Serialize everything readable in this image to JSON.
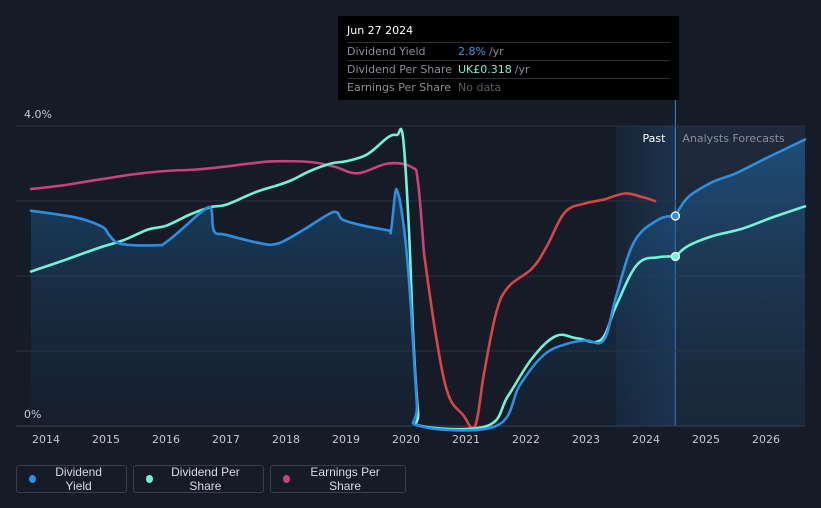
{
  "tooltip": {
    "date": "Jun 27 2024",
    "rows": [
      {
        "label": "Dividend Yield",
        "value": "2.8%",
        "unit": "/yr"
      },
      {
        "label": "Dividend Per Share",
        "value": "UK£0.318",
        "unit": "/yr"
      },
      {
        "label": "Earnings Per Share",
        "value": "No data",
        "unit": ""
      }
    ]
  },
  "legend": [
    {
      "label": "Dividend Yield",
      "color": "#2d8ee2"
    },
    {
      "label": "Dividend Per Share",
      "color": "#72f2d7"
    },
    {
      "label": "Earnings Per Share",
      "color": "#c8427f"
    }
  ],
  "chart_data": {
    "type": "line",
    "title": "",
    "xlabel": "",
    "ylabel": "Dividend Yield",
    "ylim": [
      0,
      4.0
    ],
    "xlim": [
      2013.5,
      2026.65
    ],
    "y_tick_labels": [
      {
        "value": 4.0,
        "label": "4.0%"
      },
      {
        "value": 0,
        "label": "0%"
      }
    ],
    "x_ticks": [
      "2014",
      "2015",
      "2016",
      "2017",
      "2018",
      "2019",
      "2020",
      "2021",
      "2022",
      "2023",
      "2024",
      "2025",
      "2026"
    ],
    "grid": true,
    "regions": {
      "past_label": "Past",
      "forecast_label": "Analysts Forecasts",
      "past_shade_start": 2023.5,
      "forecast_start": 2024.49
    },
    "colors": {
      "yield": "#2d8ee2",
      "dps": "#72f2d7",
      "eps_past": "#c8427f",
      "eps_recovery": "#d94545"
    },
    "series": [
      {
        "name": "Dividend Yield",
        "unit": "%",
        "points": [
          [
            2013.75,
            2.87
          ],
          [
            2014.2,
            2.82
          ],
          [
            2014.6,
            2.76
          ],
          [
            2014.95,
            2.65
          ],
          [
            2015.05,
            2.55
          ],
          [
            2015.25,
            2.43
          ],
          [
            2015.85,
            2.41
          ],
          [
            2016.0,
            2.45
          ],
          [
            2016.3,
            2.65
          ],
          [
            2016.6,
            2.86
          ],
          [
            2016.75,
            2.9
          ],
          [
            2016.8,
            2.6
          ],
          [
            2017.0,
            2.55
          ],
          [
            2017.5,
            2.45
          ],
          [
            2017.85,
            2.43
          ],
          [
            2018.3,
            2.62
          ],
          [
            2018.7,
            2.82
          ],
          [
            2018.85,
            2.85
          ],
          [
            2018.95,
            2.75
          ],
          [
            2019.3,
            2.67
          ],
          [
            2019.7,
            2.61
          ],
          [
            2019.75,
            2.61
          ],
          [
            2019.82,
            3.1
          ],
          [
            2019.86,
            3.12
          ],
          [
            2019.92,
            2.9
          ],
          [
            2020.0,
            2.4
          ],
          [
            2020.08,
            1.6
          ],
          [
            2020.18,
            0.3
          ],
          [
            2020.23,
            0.0
          ],
          [
            2021.5,
            0.0
          ],
          [
            2021.9,
            0.55
          ],
          [
            2022.3,
            0.95
          ],
          [
            2022.7,
            1.1
          ],
          [
            2023.0,
            1.14
          ],
          [
            2023.3,
            1.15
          ],
          [
            2023.5,
            1.72
          ],
          [
            2023.8,
            2.45
          ],
          [
            2024.2,
            2.75
          ],
          [
            2024.49,
            2.8
          ]
        ]
      },
      {
        "name": "Dividend Yield (forecast)",
        "unit": "%",
        "points": [
          [
            2024.49,
            2.8
          ],
          [
            2024.7,
            3.05
          ],
          [
            2025.1,
            3.25
          ],
          [
            2025.5,
            3.37
          ],
          [
            2026.0,
            3.57
          ],
          [
            2026.65,
            3.82
          ]
        ]
      },
      {
        "name": "Dividend Per Share",
        "unit": "GBP",
        "points": [
          [
            2013.75,
            2.06
          ],
          [
            2014.3,
            2.21
          ],
          [
            2014.9,
            2.38
          ],
          [
            2015.3,
            2.48
          ],
          [
            2015.7,
            2.62
          ],
          [
            2016.0,
            2.67
          ],
          [
            2016.4,
            2.82
          ],
          [
            2016.75,
            2.92
          ],
          [
            2017.0,
            2.95
          ],
          [
            2017.5,
            3.12
          ],
          [
            2017.9,
            3.22
          ],
          [
            2018.1,
            3.28
          ],
          [
            2018.4,
            3.4
          ],
          [
            2018.75,
            3.5
          ],
          [
            2019.0,
            3.53
          ],
          [
            2019.35,
            3.62
          ],
          [
            2019.7,
            3.85
          ],
          [
            2019.85,
            3.88
          ],
          [
            2019.95,
            3.85
          ],
          [
            2020.05,
            2.6
          ],
          [
            2020.12,
            1.2
          ],
          [
            2020.2,
            0.2
          ],
          [
            2020.26,
            0.0
          ],
          [
            2021.35,
            0.0
          ],
          [
            2021.7,
            0.4
          ],
          [
            2022.1,
            0.9
          ],
          [
            2022.5,
            1.2
          ],
          [
            2022.85,
            1.17
          ],
          [
            2023.25,
            1.15
          ],
          [
            2023.5,
            1.6
          ],
          [
            2023.85,
            2.15
          ],
          [
            2024.2,
            2.25
          ],
          [
            2024.49,
            2.26
          ]
        ]
      },
      {
        "name": "Dividend Per Share (forecast)",
        "unit": "GBP",
        "points": [
          [
            2024.49,
            2.26
          ],
          [
            2024.7,
            2.4
          ],
          [
            2025.1,
            2.53
          ],
          [
            2025.6,
            2.63
          ],
          [
            2026.1,
            2.78
          ],
          [
            2026.65,
            2.93
          ]
        ]
      },
      {
        "name": "Earnings Per Share",
        "unit": "GBP",
        "points": [
          [
            2013.75,
            3.16
          ],
          [
            2014.2,
            3.2
          ],
          [
            2014.6,
            3.25
          ],
          [
            2015.0,
            3.3
          ],
          [
            2015.5,
            3.36
          ],
          [
            2016.0,
            3.4
          ],
          [
            2016.5,
            3.42
          ],
          [
            2017.0,
            3.46
          ],
          [
            2017.4,
            3.5
          ],
          [
            2017.8,
            3.53
          ],
          [
            2018.4,
            3.52
          ],
          [
            2018.8,
            3.46
          ],
          [
            2019.2,
            3.37
          ],
          [
            2019.7,
            3.5
          ],
          [
            2020.1,
            3.45
          ],
          [
            2020.2,
            3.25
          ],
          [
            2020.3,
            2.3
          ]
        ]
      },
      {
        "name": "Earnings Per Share (recovery)",
        "unit": "GBP",
        "points": [
          [
            2020.3,
            2.3
          ],
          [
            2020.5,
            1.2
          ],
          [
            2020.7,
            0.43
          ],
          [
            2020.95,
            0.15
          ],
          [
            2021.15,
            0.0
          ],
          [
            2021.3,
            0.7
          ],
          [
            2021.5,
            1.5
          ],
          [
            2021.7,
            1.85
          ],
          [
            2022.1,
            2.1
          ],
          [
            2022.35,
            2.4
          ],
          [
            2022.65,
            2.85
          ],
          [
            2023.0,
            2.97
          ],
          [
            2023.3,
            3.02
          ],
          [
            2023.65,
            3.1
          ],
          [
            2023.95,
            3.05
          ],
          [
            2024.15,
            3.0
          ]
        ]
      }
    ],
    "markers": [
      {
        "series": "Dividend Yield",
        "x": 2024.49,
        "y": 2.8
      },
      {
        "series": "Dividend Per Share",
        "x": 2024.49,
        "y": 2.26
      }
    ]
  }
}
